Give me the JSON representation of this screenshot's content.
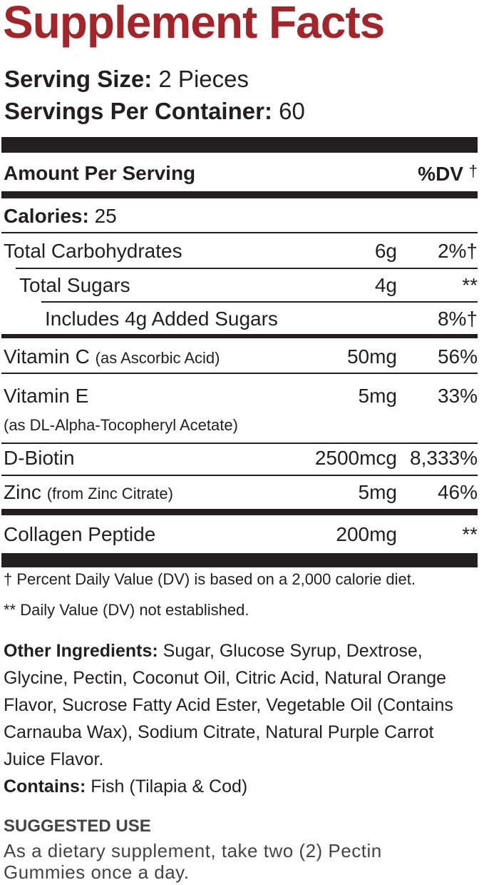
{
  "title": "Supplement Facts",
  "serving_size": {
    "label": "Serving Size:",
    "value": "2 Pieces"
  },
  "servings_per_container": {
    "label": "Servings Per Container:",
    "value": "60"
  },
  "header": {
    "amount": "Amount Per Serving",
    "dv": "%DV",
    "dv_mark": "†"
  },
  "calories": {
    "label": "Calories:",
    "value": "25"
  },
  "rows": [
    {
      "name": "Total Carbohydrates",
      "amount": "6g",
      "dv": "2%†"
    },
    {
      "name": "Total Sugars",
      "amount": "4g",
      "dv": "**"
    },
    {
      "name": "Includes 4g Added Sugars",
      "dv": "8%†"
    },
    {
      "name": "Vitamin C",
      "note": "(as Ascorbic Acid)",
      "amount": "50mg",
      "dv": "56%"
    },
    {
      "name": "Vitamin E",
      "note": "(as DL-Alpha-Tocopheryl Acetate)",
      "amount": "5mg",
      "dv": "33%"
    },
    {
      "name": "D-Biotin",
      "amount": "2500mcg",
      "dv": "8,333%"
    },
    {
      "name": "Zinc",
      "note": "(from Zinc Citrate)",
      "amount": "5mg",
      "dv": "46%"
    },
    {
      "name": "Collagen Peptide",
      "amount": "200mg",
      "dv": "**"
    }
  ],
  "footnotes": [
    "† Percent Daily Value (DV) is based on a 2,000 calorie diet.",
    "** Daily Value (DV) not established."
  ],
  "other_ingredients": {
    "label": "Other Ingredients:",
    "text": "Sugar, Glucose Syrup, Dextrose, Glycine, Pectin, Coconut Oil, Citric Acid, Natural Orange Flavor, Sucrose Fatty Acid Ester, Vegetable Oil (Contains Carnauba Wax), Sodium Citrate, Natural Purple Carrot Juice Flavor."
  },
  "contains": {
    "label": "Contains:",
    "text": "Fish (Tilapia & Cod)"
  },
  "suggested_use": {
    "heading": "SUGGESTED USE",
    "text": "As a dietary supplement, take two (2) Pectin Gummies once a day."
  }
}
